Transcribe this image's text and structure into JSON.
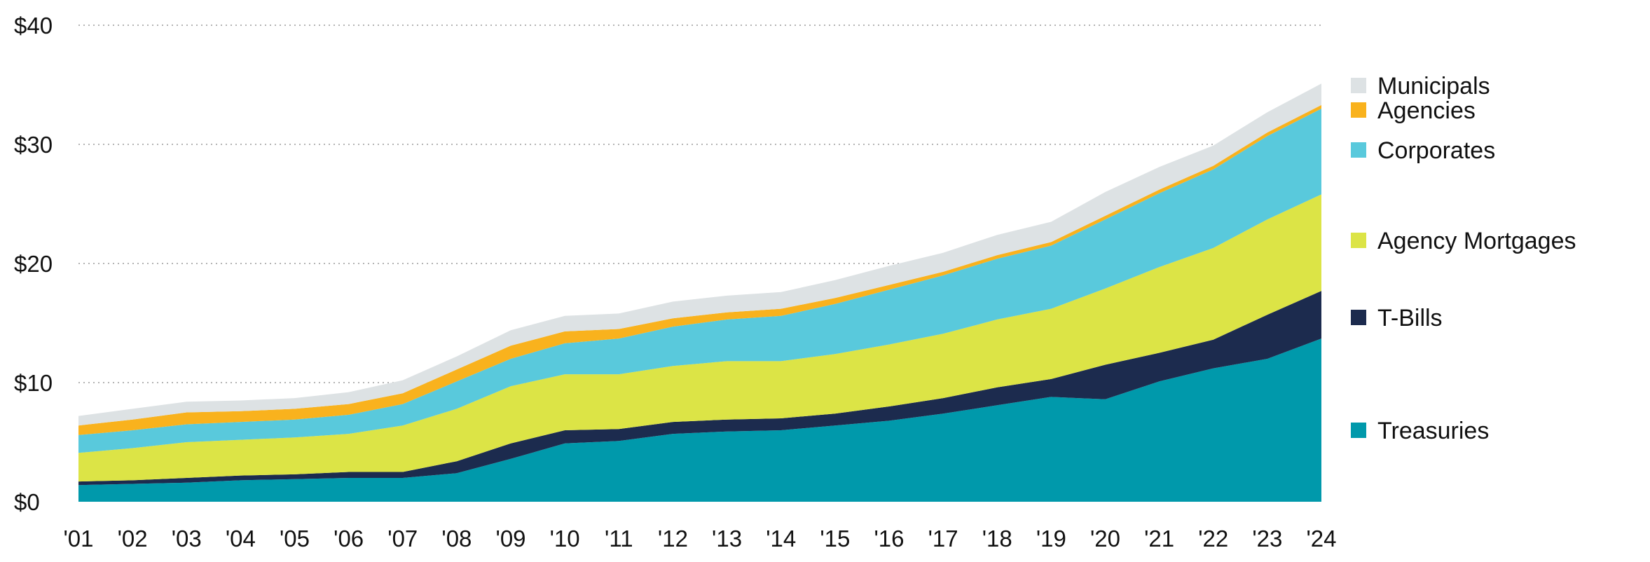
{
  "chart_data": {
    "type": "area",
    "stacked": true,
    "title": "",
    "xlabel": "",
    "ylabel": "",
    "x": [
      "'01",
      "'02",
      "'03",
      "'04",
      "'05",
      "'06",
      "'07",
      "'08",
      "'09",
      "'10",
      "'11",
      "'12",
      "'13",
      "'14",
      "'15",
      "'16",
      "'17",
      "'18",
      "'19",
      "'20",
      "'21",
      "'22",
      "'23",
      "'24"
    ],
    "ylim": [
      0,
      40
    ],
    "yticks": [
      0,
      10,
      20,
      30,
      40
    ],
    "ytick_labels": [
      "$0",
      "$10",
      "$20",
      "$30",
      "$40"
    ],
    "grid": "horizontal dotted",
    "legend_position": "right",
    "series": [
      {
        "name": "Treasuries",
        "color": "#0099ab",
        "values": [
          1.4,
          1.5,
          1.6,
          1.8,
          1.9,
          2.0,
          2.0,
          2.4,
          3.6,
          4.9,
          5.1,
          5.7,
          5.9,
          6.0,
          6.4,
          6.8,
          7.4,
          8.1,
          8.8,
          8.6,
          10.1,
          11.2,
          12.0,
          13.7
        ]
      },
      {
        "name": "T-Bills",
        "color": "#1c2b4e",
        "values": [
          0.3,
          0.3,
          0.4,
          0.4,
          0.4,
          0.5,
          0.5,
          1.0,
          1.3,
          1.1,
          1.0,
          1.0,
          1.0,
          1.0,
          1.0,
          1.2,
          1.3,
          1.5,
          1.5,
          2.9,
          2.4,
          2.4,
          3.7,
          4.0
        ]
      },
      {
        "name": "Agency Mortgages",
        "color": "#dce446",
        "values": [
          2.4,
          2.7,
          3.0,
          3.0,
          3.1,
          3.2,
          3.9,
          4.4,
          4.8,
          4.7,
          4.6,
          4.7,
          4.9,
          4.8,
          5.0,
          5.2,
          5.4,
          5.7,
          5.9,
          6.4,
          7.2,
          7.7,
          8.0,
          8.1
        ]
      },
      {
        "name": "Corporates",
        "color": "#59c9dc",
        "values": [
          1.5,
          1.5,
          1.5,
          1.5,
          1.5,
          1.6,
          1.8,
          2.3,
          2.3,
          2.6,
          3.0,
          3.3,
          3.5,
          3.8,
          4.2,
          4.6,
          4.9,
          5.1,
          5.3,
          5.8,
          6.2,
          6.6,
          7.0,
          7.2
        ]
      },
      {
        "name": "Agencies",
        "color": "#f9b21d",
        "values": [
          0.8,
          0.9,
          1.0,
          0.9,
          0.9,
          0.9,
          0.9,
          1.0,
          1.1,
          1.0,
          0.8,
          0.7,
          0.6,
          0.6,
          0.5,
          0.4,
          0.3,
          0.3,
          0.3,
          0.3,
          0.3,
          0.3,
          0.3,
          0.3
        ]
      },
      {
        "name": "Municipals",
        "color": "#dde2e4",
        "values": [
          0.8,
          0.9,
          0.9,
          0.9,
          0.9,
          1.0,
          1.1,
          1.1,
          1.3,
          1.3,
          1.3,
          1.4,
          1.4,
          1.4,
          1.5,
          1.6,
          1.6,
          1.7,
          1.7,
          2.0,
          1.9,
          1.7,
          1.7,
          1.8
        ]
      }
    ]
  }
}
